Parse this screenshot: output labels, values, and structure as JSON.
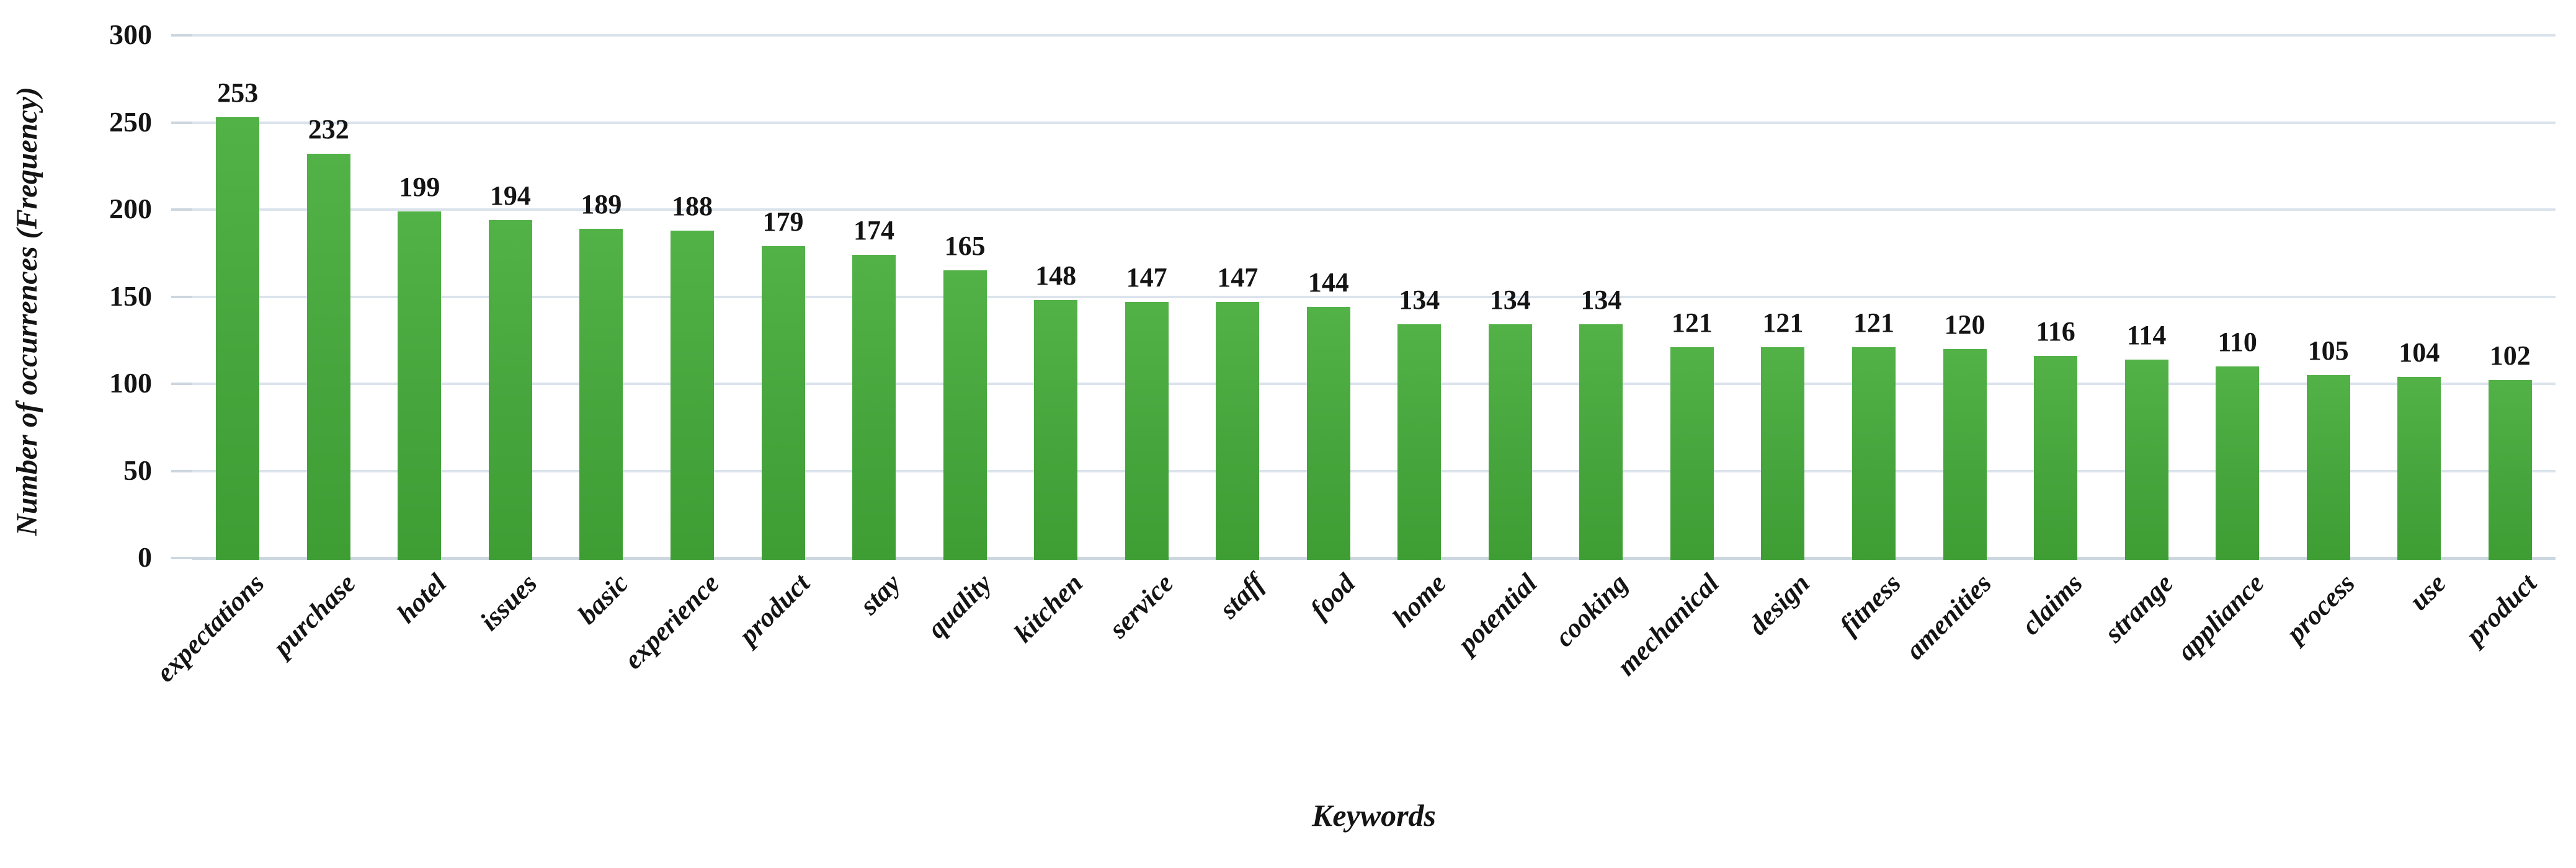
{
  "chart_data": {
    "type": "bar",
    "title": "",
    "xlabel": "Keywords",
    "ylabel": "Number of occurrences (Frequency)",
    "categories": [
      "expectations",
      "purchase",
      "hotel",
      "issues",
      "basic",
      "experience",
      "product",
      "stay",
      "quality",
      "kitchen",
      "service",
      "staff",
      "food",
      "home",
      "potential",
      "cooking",
      "mechanical",
      "design",
      "fitness",
      "amenities",
      "claims",
      "strange",
      "appliance",
      "process",
      "use",
      "product"
    ],
    "values": [
      253,
      232,
      199,
      194,
      189,
      188,
      179,
      174,
      165,
      148,
      147,
      147,
      144,
      134,
      134,
      134,
      121,
      121,
      121,
      120,
      116,
      114,
      110,
      105,
      104,
      102
    ],
    "data_labels": true,
    "ylim": [
      0,
      300
    ],
    "yticks": [
      0,
      50,
      100,
      150,
      200,
      250,
      300
    ],
    "grid": "horizontal",
    "legend": "none",
    "bar_color": "#46a53c",
    "bar_color_top": "#52b247",
    "bar_color_bottom": "#3e9e34",
    "gridline_color": "#dbe3ec",
    "axis_line_color": "#ccd6df",
    "text_color": "#141414"
  }
}
